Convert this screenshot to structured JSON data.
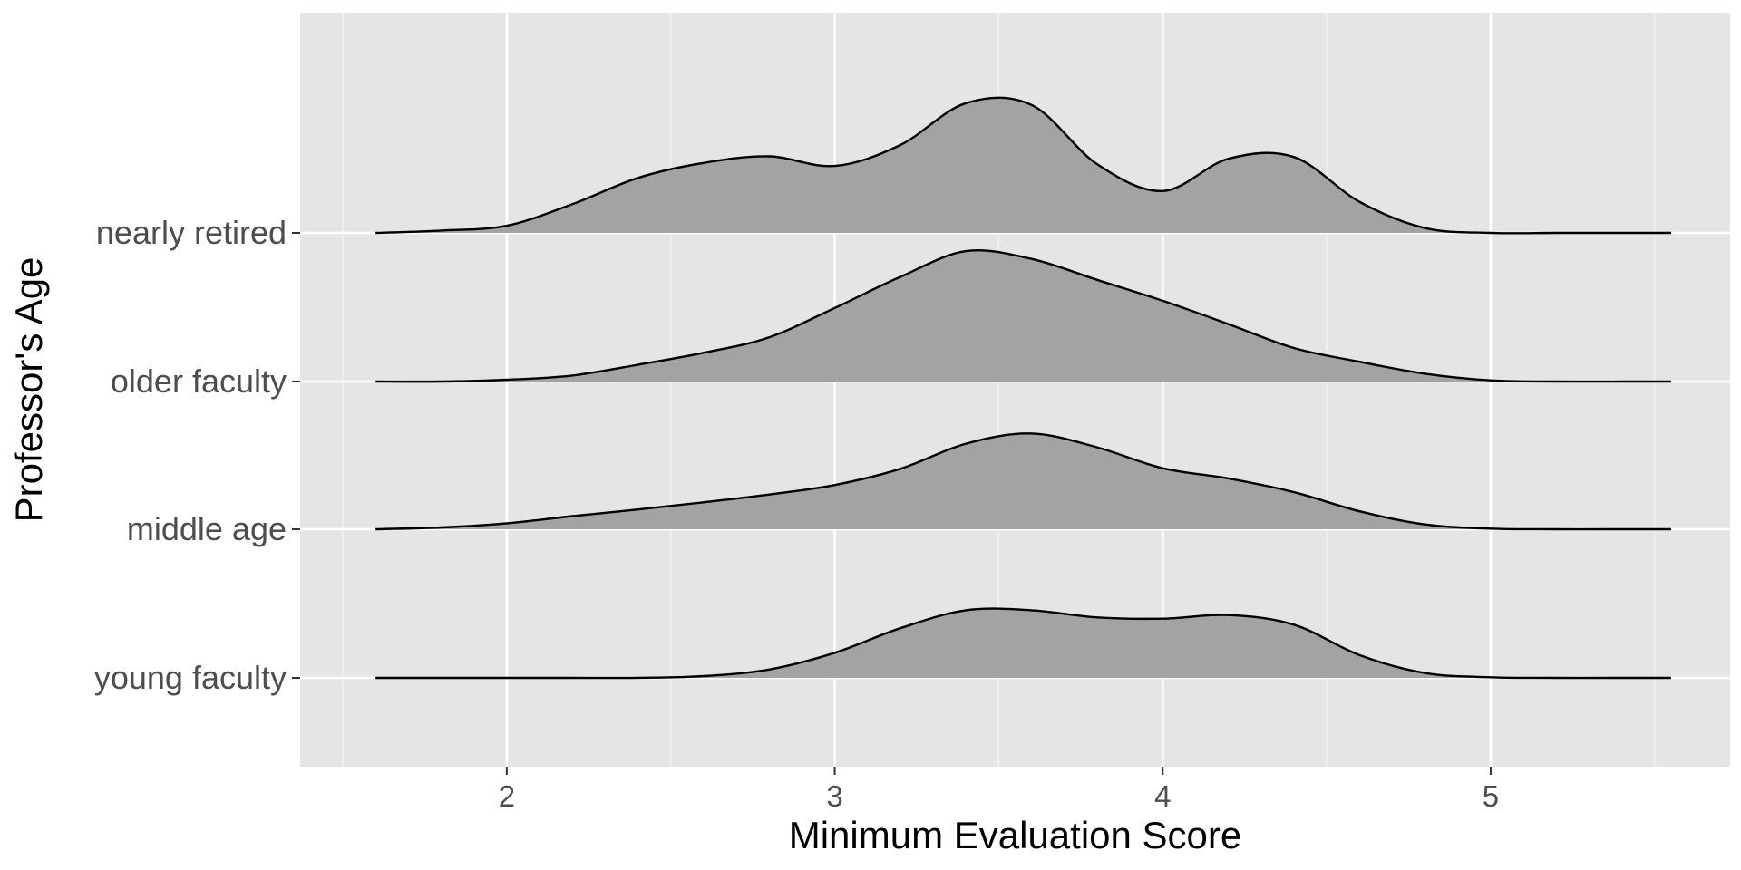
{
  "chart_data": {
    "type": "ridgeline",
    "xlabel": "Minimum Evaluation Score",
    "ylabel": "Professor's Age",
    "xlim": [
      1.37,
      5.73
    ],
    "x_ticks": [
      2,
      3,
      4,
      5
    ],
    "x_minor_ticks": [
      1.5,
      2.5,
      3.5,
      4.5,
      5.5
    ],
    "grid": true,
    "legend": "none",
    "fill_color": "#a3a3a3",
    "outline_color": "#000000",
    "panel_color": "#e5e5e5",
    "x": [
      1.6,
      1.8,
      2.0,
      2.2,
      2.4,
      2.6,
      2.8,
      3.0,
      3.2,
      3.4,
      3.6,
      3.8,
      4.0,
      4.2,
      4.4,
      4.6,
      4.8,
      5.0,
      5.2,
      5.4,
      5.55
    ],
    "series": [
      {
        "name": "young faculty",
        "values": [
          0.0,
          0.0,
          0.0,
          0.0,
          0.002,
          0.03,
          0.14,
          0.42,
          0.83,
          1.13,
          1.13,
          1.01,
          0.99,
          1.05,
          0.89,
          0.38,
          0.08,
          0.01,
          0.0,
          0.0,
          0.0
        ]
      },
      {
        "name": "middle age",
        "values": [
          0.0,
          0.03,
          0.1,
          0.22,
          0.33,
          0.45,
          0.58,
          0.74,
          1.01,
          1.43,
          1.6,
          1.37,
          1.02,
          0.85,
          0.62,
          0.3,
          0.08,
          0.01,
          0.0,
          0.0,
          0.0
        ]
      },
      {
        "name": "older faculty",
        "values": [
          0.0,
          0.0,
          0.03,
          0.1,
          0.28,
          0.48,
          0.74,
          1.23,
          1.75,
          2.18,
          2.05,
          1.7,
          1.35,
          0.96,
          0.56,
          0.33,
          0.13,
          0.02,
          0.0,
          0.0,
          0.0
        ]
      },
      {
        "name": "nearly retired",
        "values": [
          0.0,
          0.04,
          0.12,
          0.48,
          0.92,
          1.17,
          1.28,
          1.12,
          1.47,
          2.17,
          2.14,
          1.15,
          0.7,
          1.24,
          1.27,
          0.52,
          0.08,
          0.0,
          0.0,
          0.0,
          0.0
        ]
      }
    ]
  }
}
